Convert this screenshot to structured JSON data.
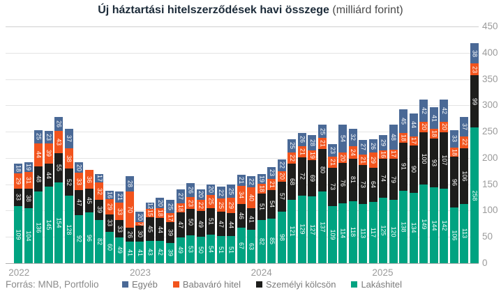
{
  "title": {
    "main": "Új háztartási hitelszerződések havi összege",
    "suffix": " (milliárd forint)"
  },
  "source": "Forrás: MNB, Portfolio",
  "legend": [
    {
      "label": "Egyéb",
      "color": "#4a6996"
    },
    {
      "label": "Babaváró hitel",
      "color": "#f2541d"
    },
    {
      "label": "Személyi kölcsön",
      "color": "#1d1d1b"
    },
    {
      "label": "Lakáshitel",
      "color": "#00a381"
    }
  ],
  "chart_data": {
    "type": "bar",
    "stacked": true,
    "title": "Új háztartási hitelszerződések havi összege (milliárd forint)",
    "ylabel": "",
    "xlabel": "",
    "ylim": [
      0,
      450
    ],
    "y_step": 50,
    "y_tick_labels": [
      "0",
      "50",
      "100",
      "150",
      "200",
      "250",
      "300",
      "350",
      "400",
      "450"
    ],
    "grid": true,
    "legend_position": "bottom",
    "bar_count": 46,
    "x_tick_labels": [
      {
        "bar_index": 0,
        "label": "2022"
      },
      {
        "bar_index": 12,
        "label": "2023"
      },
      {
        "bar_index": 24,
        "label": "2024"
      },
      {
        "bar_index": 36,
        "label": "2025"
      }
    ],
    "series": [
      {
        "name": "Lakáshitel",
        "color": "#00a381",
        "stack_order": 1,
        "values": [
          109,
          104,
          136,
          145,
          154,
          128,
          92,
          96,
          82,
          60,
          49,
          41,
          41,
          43,
          42,
          39,
          49,
          53,
          50,
          54,
          51,
          51,
          67,
          63,
          82,
          85,
          98,
          121,
          129,
          127,
          137,
          109,
          114,
          118,
          113,
          117,
          125,
          120,
          138,
          134,
          149,
          144,
          142,
          106,
          113,
          258
        ]
      },
      {
        "name": "Személyi kölcsön",
        "color": "#1d1d1b",
        "stack_order": 2,
        "values": [
          33,
          38,
          48,
          44,
          55,
          52,
          47,
          45,
          39,
          33,
          33,
          26,
          30,
          45,
          44,
          39,
          47,
          50,
          49,
          51,
          47,
          44,
          46,
          41,
          51,
          54,
          57,
          68,
          72,
          69,
          80,
          73,
          76,
          81,
          73,
          64,
          74,
          79,
          91,
          90,
          100,
          93,
          107,
          96,
          106,
          99
        ]
      },
      {
        "name": "Babaváró hitel",
        "color": "#f2541d",
        "stack_order": 3,
        "values": [
          29,
          31,
          44,
          39,
          43,
          38,
          33,
          36,
          32,
          29,
          33,
          70,
          7,
          15,
          18,
          17,
          18,
          23,
          22,
          25,
          25,
          29,
          34,
          40,
          18,
          21,
          20,
          22,
          21,
          19,
          21,
          21,
          20,
          24,
          21,
          29,
          16,
          17,
          18,
          17,
          20,
          18,
          20,
          18,
          22,
          23
        ]
      },
      {
        "name": "Egyéb",
        "color": "#4a6996",
        "stack_order": 4,
        "values": [
          18,
          19,
          25,
          23,
          26,
          37,
          20,
          0,
          17,
          16,
          21,
          28,
          20,
          12,
          20,
          25,
          27,
          26,
          20,
          20,
          22,
          25,
          21,
          22,
          19,
          23,
          22,
          25,
          26,
          28,
          25,
          23,
          54,
          32,
          27,
          26,
          29,
          48,
          45,
          44,
          42,
          41,
          42,
          33,
          37,
          38
        ]
      }
    ]
  }
}
